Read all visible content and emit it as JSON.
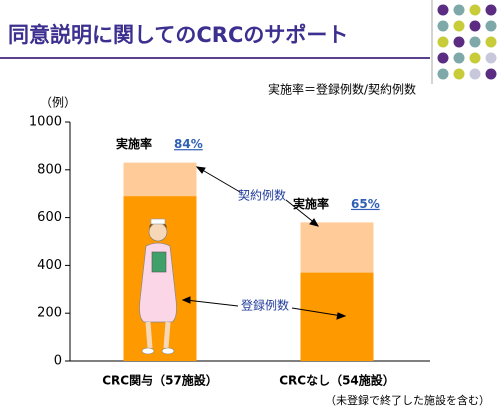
{
  "chart_data": {
    "type": "stacked_bar",
    "title": "同意説明に関してのCRCのサポート",
    "subtitle": "実施率＝登録例数/契約例数",
    "y_label": "（例）",
    "footnote": "（未登録で終了した施設を含む）",
    "categories": [
      "CRC関与（57施設）",
      "CRCなし（54施設）"
    ],
    "series": [
      {
        "name": "登録例数",
        "color": "#ff9900",
        "values": [
          690,
          370
        ]
      },
      {
        "name": "契約例数",
        "color": "#ffcc99",
        "values": [
          140,
          210
        ]
      }
    ],
    "rate": {
      "label": "実施率",
      "values": [
        84,
        65
      ],
      "value_labels": [
        "84%",
        "65%"
      ]
    },
    "ylim": [
      0,
      1000
    ],
    "yticks": [
      0,
      200,
      400,
      600,
      800,
      1000
    ]
  }
}
